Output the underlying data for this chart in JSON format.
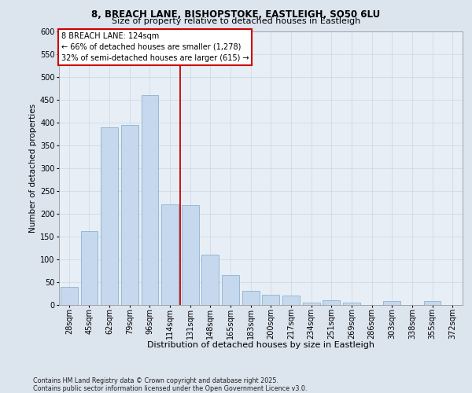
{
  "title_line1": "8, BREACH LANE, BISHOPSTOKE, EASTLEIGH, SO50 6LU",
  "title_line2": "Size of property relative to detached houses in Eastleigh",
  "xlabel": "Distribution of detached houses by size in Eastleigh",
  "ylabel": "Number of detached properties",
  "footer": "Contains HM Land Registry data © Crown copyright and database right 2025.\nContains public sector information licensed under the Open Government Licence v3.0.",
  "annotation_title": "8 BREACH LANE: 124sqm",
  "annotation_line2": "← 66% of detached houses are smaller (1,278)",
  "annotation_line3": "32% of semi-detached houses are larger (615) →",
  "bar_color": "#c5d8ed",
  "bar_edge_color": "#7aaacb",
  "vline_color": "#cc0000",
  "grid_color": "#ccd5e0",
  "bg_color": "#e8eef5",
  "fig_bg_color": "#dce4ee",
  "annotation_box_edge": "#cc0000",
  "annotation_box_bg": "#ffffff",
  "categories": [
    "28sqm",
    "45sqm",
    "62sqm",
    "79sqm",
    "96sqm",
    "114sqm",
    "131sqm",
    "148sqm",
    "165sqm",
    "183sqm",
    "200sqm",
    "217sqm",
    "234sqm",
    "251sqm",
    "269sqm",
    "286sqm",
    "303sqm",
    "338sqm",
    "355sqm",
    "372sqm"
  ],
  "values": [
    38,
    162,
    390,
    395,
    460,
    220,
    218,
    110,
    65,
    30,
    22,
    20,
    5,
    9,
    5,
    0,
    8,
    0,
    7,
    0
  ],
  "vline_x": 5.5,
  "xlim": [
    -0.5,
    19.5
  ],
  "ylim": [
    0,
    600
  ],
  "yticks": [
    0,
    50,
    100,
    150,
    200,
    250,
    300,
    350,
    400,
    450,
    500,
    550,
    600
  ],
  "title1_fontsize": 8.5,
  "title2_fontsize": 8,
  "ylabel_fontsize": 7.5,
  "xlabel_fontsize": 8,
  "tick_fontsize": 7,
  "annotation_fontsize": 7,
  "footer_fontsize": 5.8
}
